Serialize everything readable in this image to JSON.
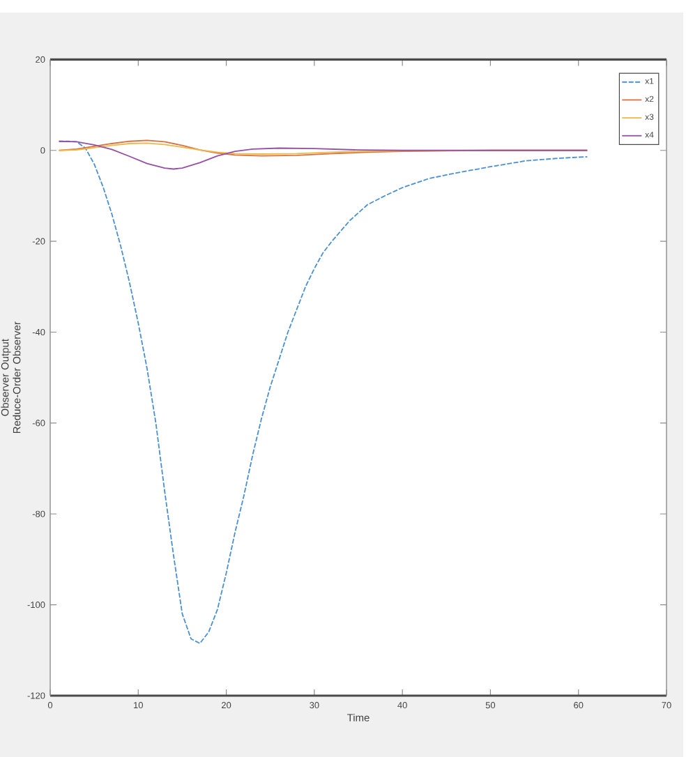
{
  "chart_data": {
    "type": "line",
    "xlabel": "Time",
    "ylabel": "Observer Output Reduce-Order Observer",
    "xlim": [
      0,
      70
    ],
    "ylim": [
      -120,
      20
    ],
    "xticks": [
      0,
      10,
      20,
      30,
      40,
      50,
      60,
      70
    ],
    "yticks": [
      -120,
      -100,
      -80,
      -60,
      -40,
      -20,
      0,
      20
    ],
    "legend": "top right",
    "line_style": "solid",
    "series": [
      {
        "name": "x1",
        "color": "#4a90d0",
        "line_style": "dashed",
        "x": [
          1,
          2,
          3,
          4,
          5,
          6,
          7,
          8,
          9,
          10,
          11,
          12,
          13,
          14,
          15,
          16,
          17,
          18,
          19,
          20,
          21,
          22,
          23,
          24,
          25,
          26,
          27,
          28,
          29,
          30,
          31,
          32,
          34,
          36,
          38,
          40,
          43,
          46,
          50,
          54,
          58,
          61
        ],
        "values": [
          2,
          2,
          1.9,
          0.5,
          -3,
          -8,
          -14,
          -21,
          -29,
          -38,
          -48,
          -60,
          -75,
          -89,
          -102,
          -107.5,
          -108.5,
          -106,
          -101,
          -93,
          -84,
          -76,
          -67,
          -59,
          -52,
          -46,
          -40,
          -35,
          -30,
          -26,
          -22.5,
          -20,
          -15.5,
          -12,
          -10,
          -8.2,
          -6.2,
          -5,
          -3.6,
          -2.3,
          -1.7,
          -1.4
        ]
      },
      {
        "name": "x2",
        "color": "#d9703f",
        "x": [
          1,
          3,
          5,
          7,
          9,
          11,
          13,
          15,
          17,
          19,
          21,
          24,
          28,
          32,
          36,
          40,
          45,
          50,
          61
        ],
        "values": [
          0,
          0.3,
          0.9,
          1.5,
          2,
          2.2,
          1.9,
          1.1,
          0.1,
          -0.6,
          -1,
          -1.2,
          -1.1,
          -0.7,
          -0.4,
          -0.2,
          -0.1,
          0,
          0
        ]
      },
      {
        "name": "x3",
        "color": "#edb84a",
        "x": [
          1,
          3,
          5,
          7,
          9,
          11,
          13,
          15,
          17,
          19,
          21,
          24,
          28,
          32,
          36,
          40,
          50,
          61
        ],
        "values": [
          0,
          0.1,
          0.6,
          1.1,
          1.5,
          1.6,
          1.3,
          0.7,
          0.1,
          -0.4,
          -0.7,
          -0.8,
          -0.7,
          -0.4,
          -0.2,
          -0.1,
          0,
          0
        ]
      },
      {
        "name": "x4",
        "color": "#9550a5",
        "x": [
          1,
          3,
          5,
          7,
          9,
          11,
          13,
          14,
          15,
          17,
          19,
          21,
          23,
          26,
          30,
          35,
          40,
          50,
          61
        ],
        "values": [
          2,
          1.9,
          1.2,
          0.2,
          -1.3,
          -2.9,
          -3.9,
          -4.1,
          -3.9,
          -2.7,
          -1.2,
          -0.2,
          0.3,
          0.5,
          0.4,
          0.1,
          0,
          0,
          0
        ]
      }
    ]
  }
}
